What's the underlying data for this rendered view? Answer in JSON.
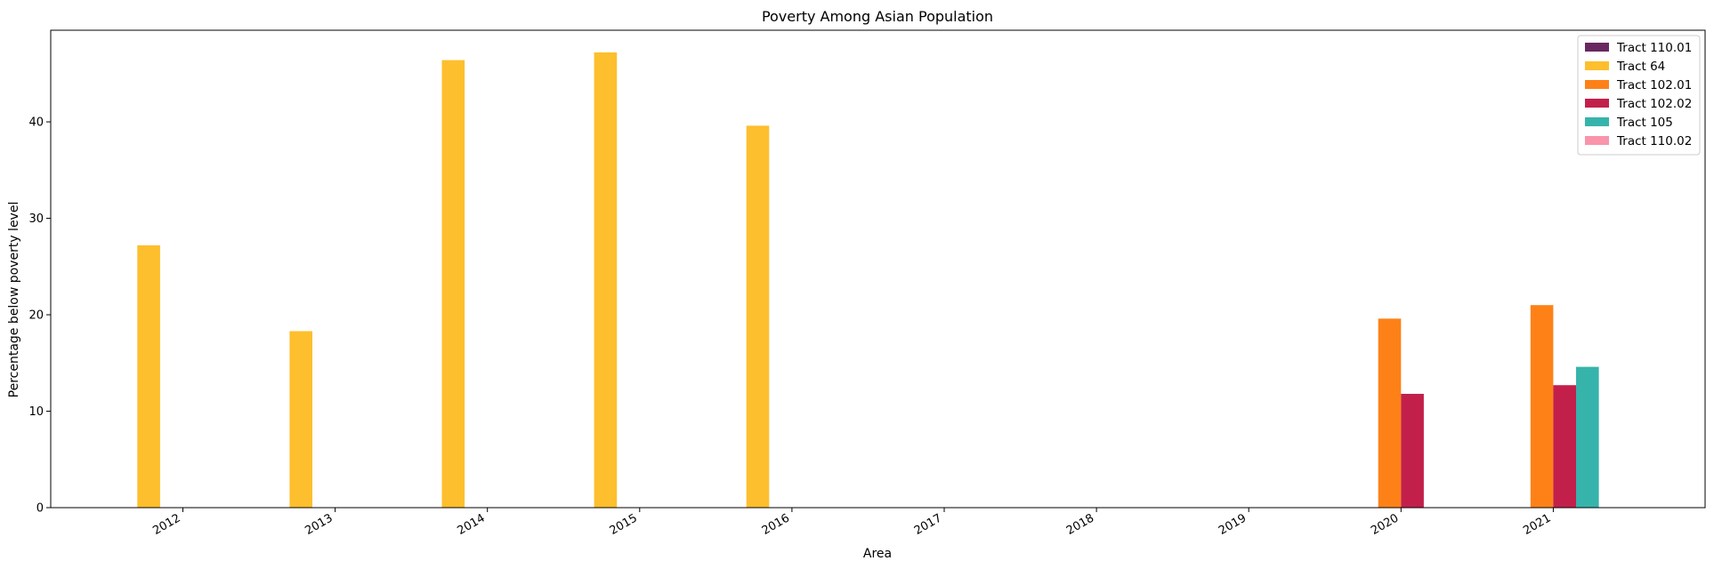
{
  "chart_data": {
    "type": "bar",
    "title": "Poverty Among Asian Population",
    "xlabel": "Area",
    "ylabel": "Percentage below poverty level",
    "categories": [
      "2012",
      "2013",
      "2014",
      "2015",
      "2016",
      "2017",
      "2018",
      "2019",
      "2020",
      "2021"
    ],
    "ylim": [
      0,
      49.5
    ],
    "yticks": [
      0,
      10,
      20,
      30,
      40
    ],
    "grid": false,
    "legend_position": "top-right",
    "series": [
      {
        "name": "Tract 110.01",
        "color": "#6a2860",
        "values": [
          null,
          null,
          null,
          null,
          null,
          null,
          null,
          null,
          null,
          null
        ]
      },
      {
        "name": "Tract 64",
        "color": "#fdbf2d",
        "values": [
          27.2,
          18.3,
          46.4,
          47.2,
          39.6,
          null,
          null,
          null,
          null,
          null
        ]
      },
      {
        "name": "Tract 102.01",
        "color": "#fe8118",
        "values": [
          null,
          null,
          null,
          null,
          null,
          null,
          null,
          null,
          19.6,
          21.0
        ]
      },
      {
        "name": "Tract 102.02",
        "color": "#c2204b",
        "values": [
          null,
          null,
          null,
          null,
          null,
          null,
          null,
          null,
          11.8,
          12.7
        ]
      },
      {
        "name": "Tract 105",
        "color": "#36b4ab",
        "values": [
          null,
          null,
          null,
          null,
          null,
          null,
          null,
          null,
          null,
          14.6
        ]
      },
      {
        "name": "Tract 110.02",
        "color": "#f994aa",
        "values": [
          null,
          null,
          null,
          null,
          null,
          null,
          null,
          null,
          null,
          null
        ]
      }
    ]
  }
}
